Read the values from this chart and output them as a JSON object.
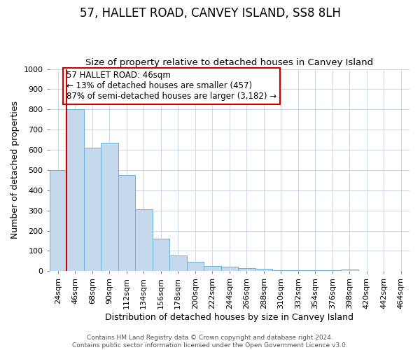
{
  "title": "57, HALLET ROAD, CANVEY ISLAND, SS8 8LH",
  "subtitle": "Size of property relative to detached houses in Canvey Island",
  "xlabel": "Distribution of detached houses by size in Canvey Island",
  "ylabel": "Number of detached properties",
  "categories": [
    "24sqm",
    "46sqm",
    "68sqm",
    "90sqm",
    "112sqm",
    "134sqm",
    "156sqm",
    "178sqm",
    "200sqm",
    "222sqm",
    "244sqm",
    "266sqm",
    "288sqm",
    "310sqm",
    "332sqm",
    "354sqm",
    "376sqm",
    "398sqm",
    "420sqm",
    "442sqm",
    "464sqm"
  ],
  "values": [
    500,
    800,
    610,
    635,
    475,
    305,
    160,
    78,
    47,
    25,
    22,
    15,
    10,
    5,
    3,
    3,
    3,
    8,
    2,
    1,
    0
  ],
  "bar_color": "#c5d9ed",
  "bar_edge_color": "#6baed6",
  "red_line_index": 1,
  "annotation_text": "57 HALLET ROAD: 46sqm\n← 13% of detached houses are smaller (457)\n87% of semi-detached houses are larger (3,182) →",
  "annotation_box_color": "#ffffff",
  "annotation_box_edge_color": "#cc0000",
  "ylim": [
    0,
    1000
  ],
  "yticks": [
    0,
    100,
    200,
    300,
    400,
    500,
    600,
    700,
    800,
    900,
    1000
  ],
  "footer": "Contains HM Land Registry data © Crown copyright and database right 2024.\nContains public sector information licensed under the Open Government Licence v3.0.",
  "background_color": "#ffffff",
  "grid_color": "#ccd6e8",
  "title_fontsize": 12,
  "subtitle_fontsize": 9.5,
  "ylabel_fontsize": 9,
  "xlabel_fontsize": 9,
  "tick_fontsize": 8,
  "footer_fontsize": 6.5,
  "ann_fontsize": 8.5
}
